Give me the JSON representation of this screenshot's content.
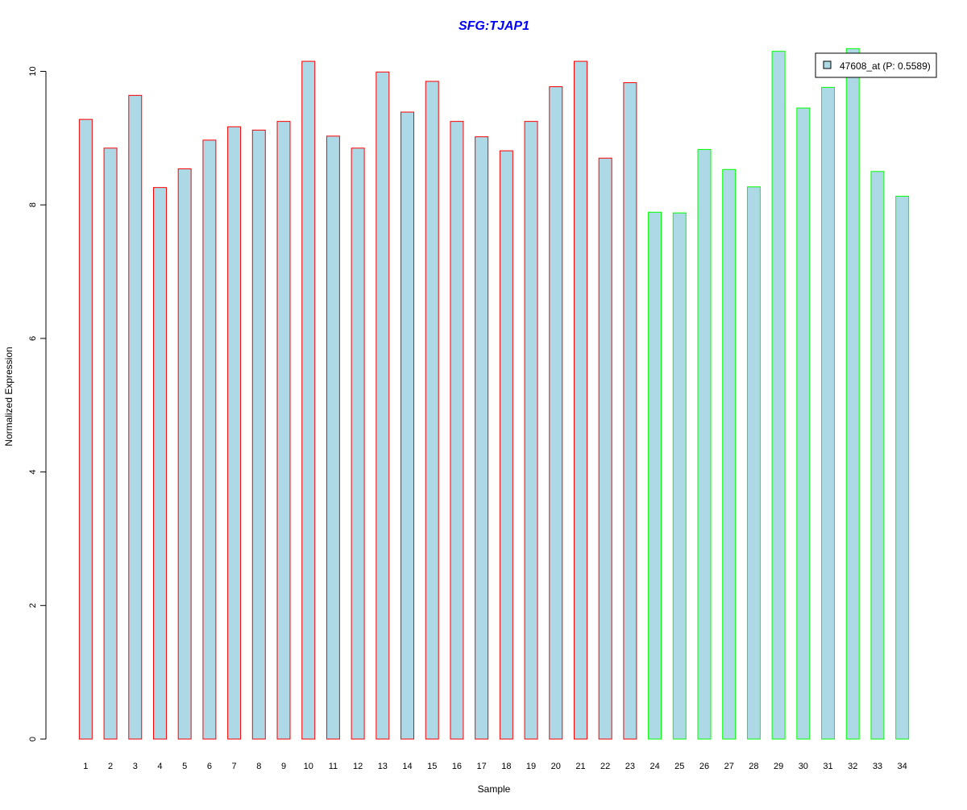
{
  "chart_data": {
    "type": "bar",
    "title": "SFG:TJAP1",
    "xlabel": "Sample",
    "ylabel": "Normalized Expression",
    "ylim": [
      0,
      10.4
    ],
    "y_ticks": [
      "0",
      "2",
      "4",
      "6",
      "8",
      "10"
    ],
    "grid": false,
    "legend_position": "top-right",
    "categories": [
      "1",
      "2",
      "3",
      "4",
      "5",
      "6",
      "7",
      "8",
      "9",
      "10",
      "11",
      "12",
      "13",
      "14",
      "15",
      "16",
      "17",
      "18",
      "19",
      "20",
      "21",
      "22",
      "23",
      "24",
      "25",
      "26",
      "27",
      "28",
      "29",
      "30",
      "31",
      "32",
      "33",
      "34"
    ],
    "series": [
      {
        "name": "47608_at (P: 0.5589)",
        "values": [
          9.28,
          8.85,
          9.64,
          8.26,
          8.54,
          8.97,
          9.17,
          9.12,
          9.25,
          10.15,
          9.03,
          8.85,
          9.99,
          9.39,
          9.85,
          9.25,
          9.02,
          8.81,
          9.25,
          9.77,
          10.15,
          8.7,
          9.83,
          7.89,
          7.88,
          8.83,
          8.53,
          8.27,
          10.3,
          9.45,
          9.76,
          10.34,
          8.5,
          8.13
        ]
      }
    ],
    "group_sizes": [
      23,
      11
    ],
    "colors": {
      "bar_fill": "#add8e6",
      "group1_outline": "#ff0000",
      "group2_outline": "#00ff00",
      "title": "#0000ff",
      "axis": "#000000"
    }
  }
}
